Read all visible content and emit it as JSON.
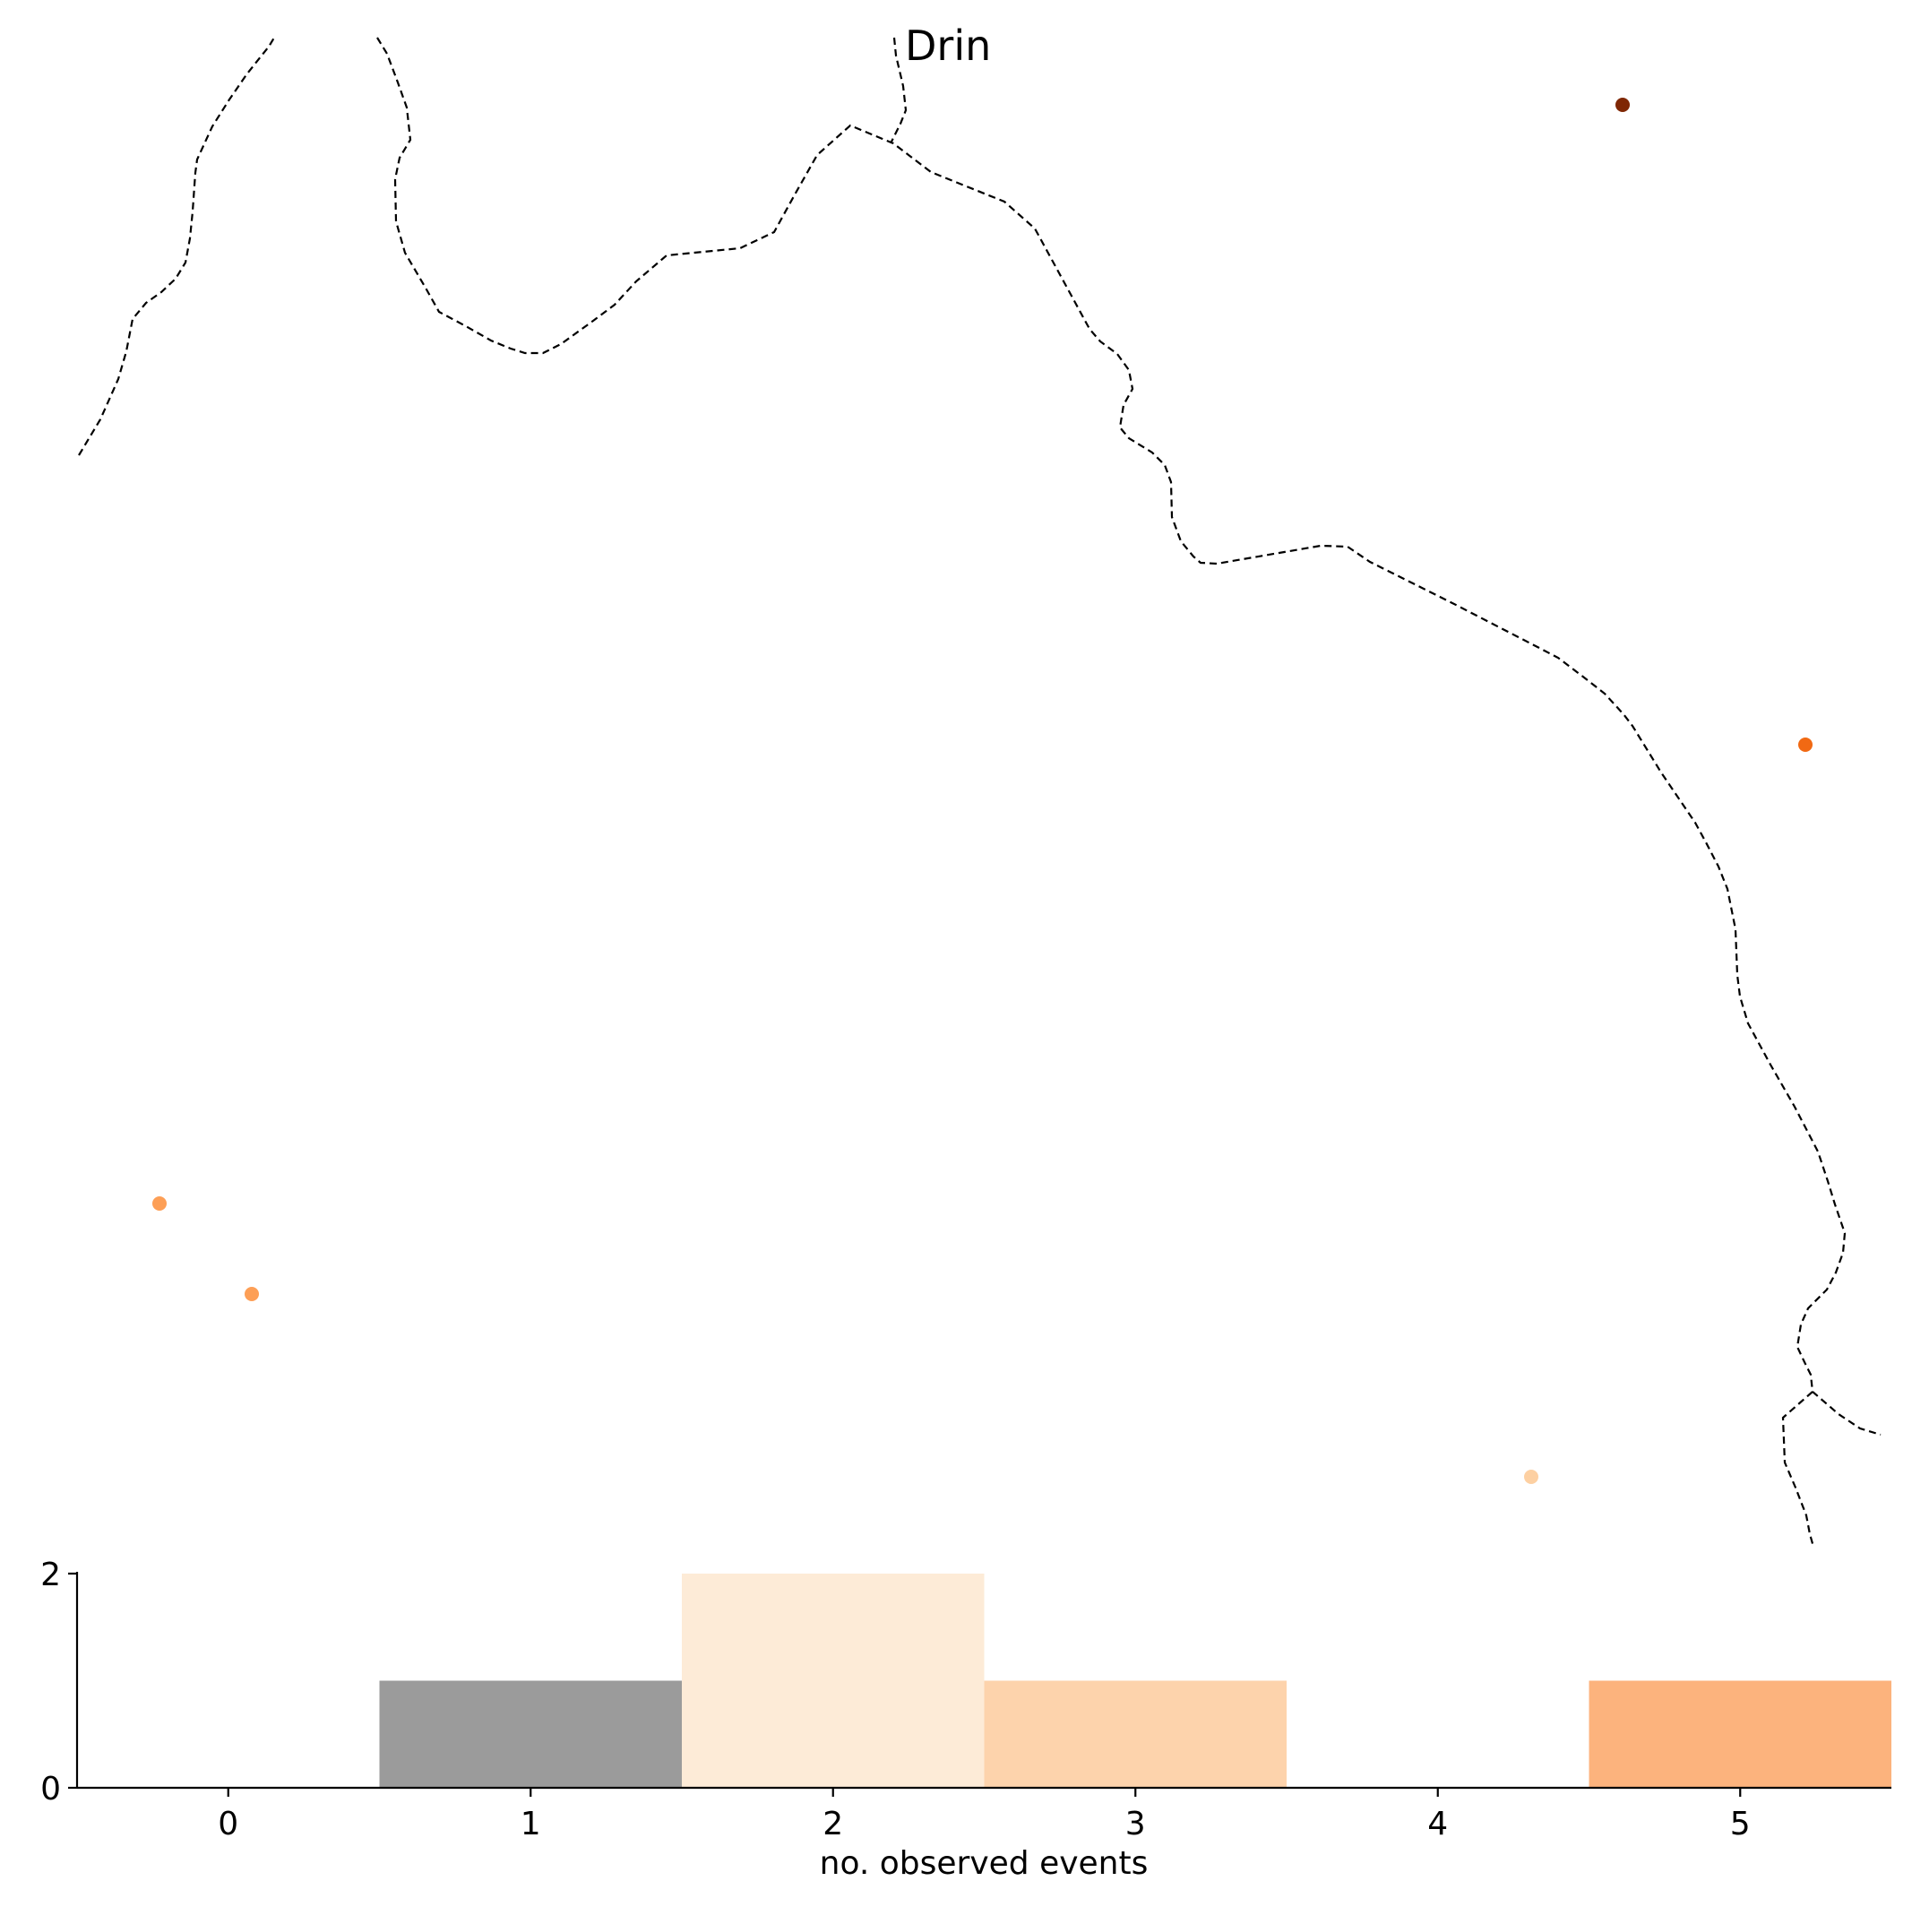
{
  "map": {
    "river_label": "Drin",
    "station_colors": [
      "#7f2704",
      "#f16913",
      "#fd9f56",
      "#fd9f56",
      "#fdd0a2"
    ]
  },
  "histogram": {
    "chart_data": {
      "type": "bar",
      "categories": [
        "0",
        "1",
        "2",
        "3",
        "4",
        "5"
      ],
      "values": [
        0,
        1,
        2,
        1,
        0,
        1
      ],
      "bar_colors": [
        "#ffffff",
        "#9b9b9b",
        "#fdebd7",
        "#fdd3ac",
        "#ffffff",
        "#fcb37d"
      ],
      "xlabel": "no. observed events",
      "ylabel": "",
      "xlim": [
        -0.5,
        5.5
      ],
      "ylim": [
        0,
        2.05
      ],
      "yticks": [
        0,
        2
      ],
      "xticks": [
        0,
        1,
        2,
        3,
        4,
        5
      ],
      "grid": false
    }
  }
}
